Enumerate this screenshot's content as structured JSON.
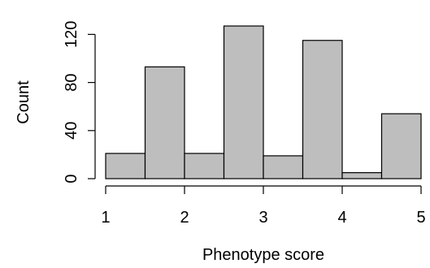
{
  "chart_data": {
    "type": "bar",
    "subtype": "histogram",
    "bins": [
      {
        "x0": 1.0,
        "x1": 1.5,
        "count": 21
      },
      {
        "x0": 1.5,
        "x1": 2.0,
        "count": 93
      },
      {
        "x0": 2.0,
        "x1": 2.5,
        "count": 21
      },
      {
        "x0": 2.5,
        "x1": 3.0,
        "count": 127
      },
      {
        "x0": 3.0,
        "x1": 3.5,
        "count": 19
      },
      {
        "x0": 3.5,
        "x1": 4.0,
        "count": 115
      },
      {
        "x0": 4.0,
        "x1": 4.5,
        "count": 5
      },
      {
        "x0": 4.5,
        "x1": 5.0,
        "count": 54
      }
    ],
    "xlabel": "Phenotype score",
    "ylabel": "Count",
    "xticks": [
      "1",
      "2",
      "3",
      "4",
      "5"
    ],
    "yticks": [
      "0",
      "40",
      "80",
      "120"
    ],
    "xlim": [
      1,
      5
    ],
    "ylim": [
      0,
      127
    ],
    "grid": false,
    "bar_color": "#bebebe"
  }
}
